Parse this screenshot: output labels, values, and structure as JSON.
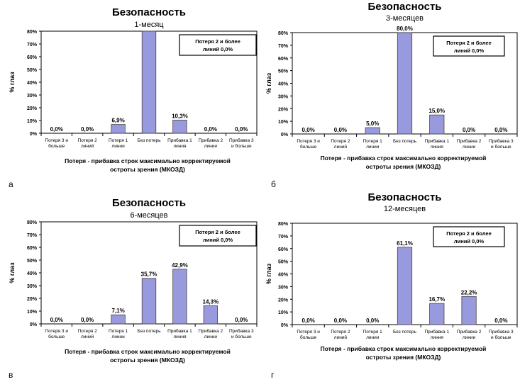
{
  "chart_data": [
    {
      "type": "bar",
      "panel_letter": "а",
      "title": "Безопасность",
      "subtitle": "1-месяц",
      "ylabel": "% глаз",
      "xlabel": [
        "Потеря - прибавка строк максимально корректируемой",
        "остроты зрения (МКОЗД)"
      ],
      "ylim": [
        0,
        80
      ],
      "yticks": [
        "0%",
        "10%",
        "20%",
        "30%",
        "40%",
        "50%",
        "60%",
        "70%",
        "80%"
      ],
      "legend_box": [
        "Потеря 2 и более",
        "линий 0,0%"
      ],
      "categories": [
        [
          "Потеря 3 и",
          "больше"
        ],
        [
          "Потеря 2",
          "линий"
        ],
        [
          "Потеря 1",
          "линии"
        ],
        [
          "Без потерь"
        ],
        [
          "Прибавка 1",
          "линия"
        ],
        [
          "Прибавка 2",
          "линии"
        ],
        [
          "Прибавка 3",
          "и больше"
        ]
      ],
      "values": [
        0.0,
        0.0,
        6.9,
        82.8,
        10.3,
        0.0,
        0.0
      ],
      "labels": [
        "0,0%",
        "0,0%",
        "6,9%",
        "",
        "10,3%",
        "0,0%",
        "0,0%"
      ],
      "bar_color": "#9999dd"
    },
    {
      "type": "bar",
      "panel_letter": "б",
      "title": "Безопасность",
      "subtitle": "3-месяцев",
      "ylabel": "% глаз",
      "xlabel": [
        "Потеря - прибавка строк максимально корректируемой",
        "остроты зрения (МКОЗД)"
      ],
      "ylim": [
        0,
        80
      ],
      "yticks": [
        "0%",
        "10%",
        "20%",
        "30%",
        "40%",
        "50%",
        "60%",
        "70%",
        "80%"
      ],
      "legend_box": [
        "Потеря 2 и более",
        "линий 0,0%"
      ],
      "categories": [
        [
          "Потеря 3 и",
          "больше"
        ],
        [
          "Потеря 2",
          "линий"
        ],
        [
          "Потеря 1",
          "линии"
        ],
        [
          "Без потерь"
        ],
        [
          "Прибавка 1",
          "линия"
        ],
        [
          "Прибавка 2",
          "линии"
        ],
        [
          "Прибавка 3",
          "и больше"
        ]
      ],
      "values": [
        0.0,
        0.0,
        5.0,
        80.0,
        15.0,
        0.0,
        0.0
      ],
      "labels": [
        "0,0%",
        "0,0%",
        "5,0%",
        "80,0%",
        "15,0%",
        "0,0%",
        "0,0%"
      ],
      "bar_color": "#9999dd"
    },
    {
      "type": "bar",
      "panel_letter": "в",
      "title": "Безопасность",
      "subtitle": "6-месяцев",
      "ylabel": "% глаз",
      "xlabel": [
        "Потеря - прибавка строк максимально корректируемой",
        "остроты зрения (МКОЗД)"
      ],
      "ylim": [
        0,
        80
      ],
      "yticks": [
        "0%",
        "10%",
        "20%",
        "30%",
        "40%",
        "50%",
        "60%",
        "70%",
        "80%"
      ],
      "legend_box": [
        "Потеря 2 и более",
        "линий 0,0%"
      ],
      "categories": [
        [
          "Потеря 3 и",
          "больше"
        ],
        [
          "Потеря 2",
          "линий"
        ],
        [
          "Потеря 1",
          "линии"
        ],
        [
          "Без потерь"
        ],
        [
          "Прибавка 1",
          "линия"
        ],
        [
          "Прибавка 2",
          "линии"
        ],
        [
          "Прибавка 3",
          "и больше"
        ]
      ],
      "values": [
        0.0,
        0.0,
        7.1,
        35.7,
        42.9,
        14.3,
        0.0
      ],
      "labels": [
        "0,0%",
        "0,0%",
        "7,1%",
        "35,7%",
        "42,9%",
        "14,3%",
        "0,0%"
      ],
      "bar_color": "#9999dd"
    },
    {
      "type": "bar",
      "panel_letter": "г",
      "title": "Безопасность",
      "subtitle": "12-месяцев",
      "ylabel": "% глаз",
      "xlabel": [
        "Потеря - прибавка строк максимально корректируемой",
        "остроты зрения (МКОЗД)"
      ],
      "ylim": [
        0,
        80
      ],
      "yticks": [
        "0%",
        "10%",
        "20%",
        "30%",
        "40%",
        "50%",
        "60%",
        "70%",
        "80%"
      ],
      "legend_box": [
        "Потеря 2 и более",
        "линий 0,0%"
      ],
      "categories": [
        [
          "Потеря 3 и",
          "больше"
        ],
        [
          "Потеря 2",
          "линий"
        ],
        [
          "Потеря 1",
          "линии"
        ],
        [
          "Без потерь"
        ],
        [
          "Прибавка 1",
          "линия"
        ],
        [
          "Прибавка 2",
          "линии"
        ],
        [
          "Прибавка 3",
          "и больше"
        ]
      ],
      "values": [
        0.0,
        0.0,
        0.0,
        61.1,
        16.7,
        22.2,
        0.0
      ],
      "labels": [
        "0,0%",
        "0,0%",
        "0,0%",
        "61,1%",
        "16,7%",
        "22,2%",
        "0,0%"
      ],
      "bar_color": "#9999dd"
    }
  ]
}
